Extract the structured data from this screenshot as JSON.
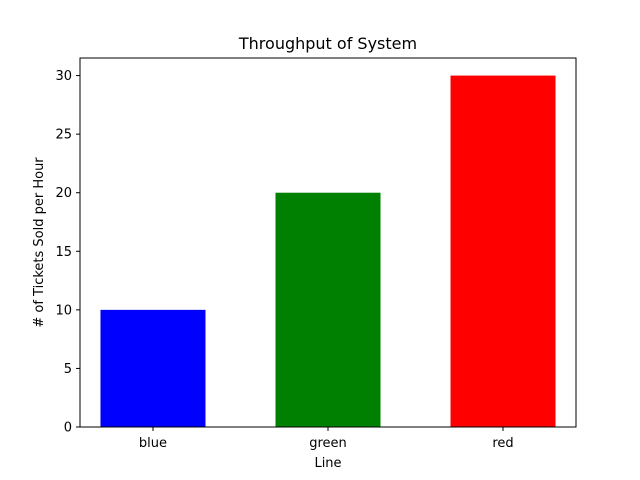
{
  "chart_data": {
    "type": "bar",
    "title": "Throughput of System",
    "xlabel": "Line",
    "ylabel": "# of Tickets Sold per Hour",
    "categories": [
      "blue",
      "green",
      "red"
    ],
    "values": [
      10,
      20,
      30
    ],
    "colors": [
      "#0000ff",
      "#008000",
      "#ff0000"
    ],
    "ylim": [
      0,
      31.5
    ],
    "yticks": [
      0,
      5,
      10,
      15,
      20,
      25,
      30
    ],
    "grid": false
  }
}
